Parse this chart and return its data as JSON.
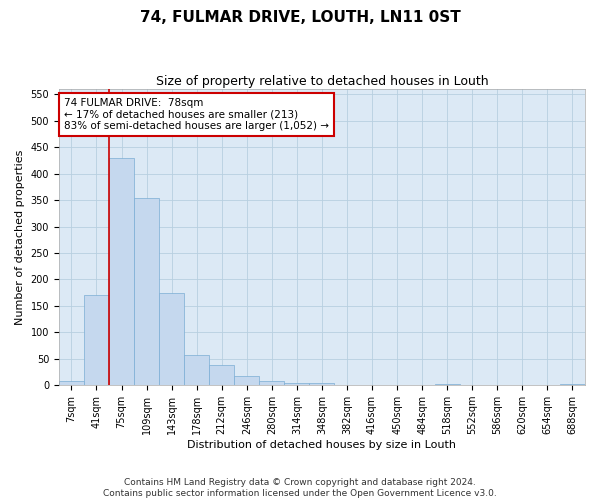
{
  "title": "74, FULMAR DRIVE, LOUTH, LN11 0ST",
  "subtitle": "Size of property relative to detached houses in Louth",
  "xlabel": "Distribution of detached houses by size in Louth",
  "ylabel": "Number of detached properties",
  "bar_labels": [
    "7sqm",
    "41sqm",
    "75sqm",
    "109sqm",
    "143sqm",
    "178sqm",
    "212sqm",
    "246sqm",
    "280sqm",
    "314sqm",
    "348sqm",
    "382sqm",
    "416sqm",
    "450sqm",
    "484sqm",
    "518sqm",
    "552sqm",
    "586sqm",
    "620sqm",
    "654sqm",
    "688sqm"
  ],
  "bar_values": [
    8,
    170,
    430,
    355,
    175,
    57,
    38,
    17,
    8,
    4,
    5,
    0,
    0,
    0,
    0,
    3,
    0,
    0,
    0,
    0,
    3
  ],
  "bar_color": "#c5d8ee",
  "bar_edge_color": "#7aadd4",
  "vline_x": 1.5,
  "vline_color": "#cc0000",
  "annotation_line1": "74 FULMAR DRIVE:  78sqm",
  "annotation_line2": "← 17% of detached houses are smaller (213)",
  "annotation_line3": "83% of semi-detached houses are larger (1,052) →",
  "annotation_box_color": "#ffffff",
  "annotation_box_edge": "#cc0000",
  "ylim": [
    0,
    560
  ],
  "yticks": [
    0,
    50,
    100,
    150,
    200,
    250,
    300,
    350,
    400,
    450,
    500,
    550
  ],
  "footer1": "Contains HM Land Registry data © Crown copyright and database right 2024.",
  "footer2": "Contains public sector information licensed under the Open Government Licence v3.0.",
  "bg_color": "#ffffff",
  "plot_bg_color": "#dce9f5",
  "grid_color": "#b8cfe0",
  "title_fontsize": 11,
  "subtitle_fontsize": 9,
  "axis_label_fontsize": 8,
  "tick_fontsize": 7,
  "annotation_fontsize": 7.5,
  "footer_fontsize": 6.5
}
